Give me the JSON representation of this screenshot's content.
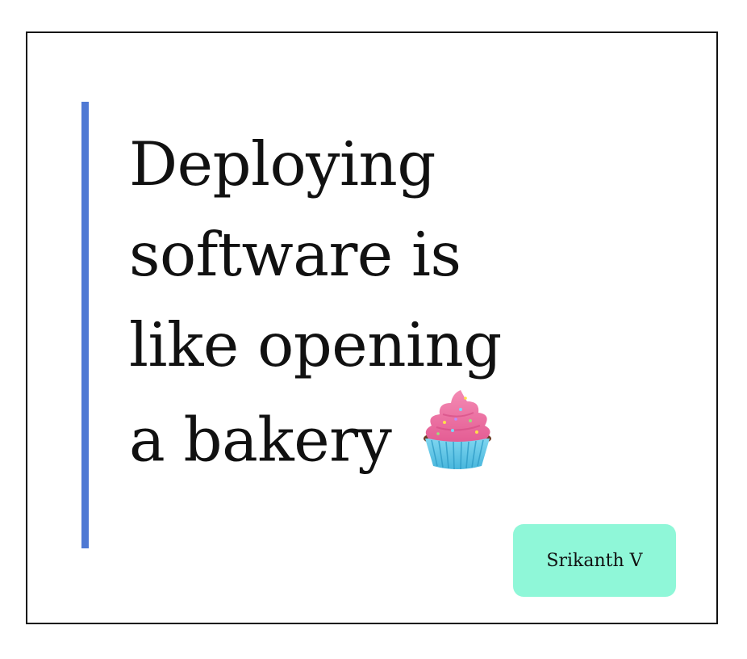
{
  "headline": {
    "line1": "Deploying",
    "line2": "software is",
    "line3": "like opening",
    "line4": "a bakery"
  },
  "icon": "cupcake-icon",
  "author": "Srikanth V",
  "colors": {
    "accent_bar": "#4f79d4",
    "badge": "#8ff7d8",
    "border": "#111111",
    "text": "#111111"
  }
}
